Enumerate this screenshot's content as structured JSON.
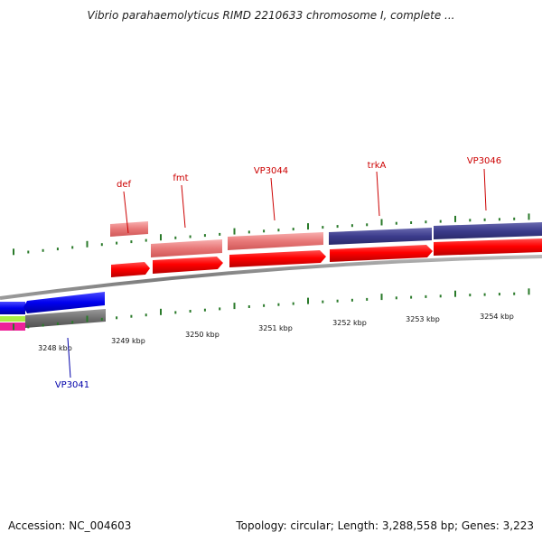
{
  "title": "Vibrio parahaemolyticus RIMD 2210633 chromosome I, complete ...",
  "ticks": [
    "3248 kbp",
    "3249 kbp",
    "3250 kbp",
    "3251 kbp",
    "3252 kbp",
    "3253 kbp",
    "3254 kbp"
  ],
  "genes": {
    "forward_labels": [
      "def",
      "fmt",
      "VP3044",
      "trkA",
      "VP3046"
    ],
    "reverse_labels": [
      "VP3041"
    ],
    "forward_color": "#cc0000",
    "reverse_color": "#0000aa"
  },
  "footer": {
    "accession": "Accession: NC_004603",
    "summary": "Topology: circular; Length: 3,288,558 bp; Genes: 3,223"
  }
}
